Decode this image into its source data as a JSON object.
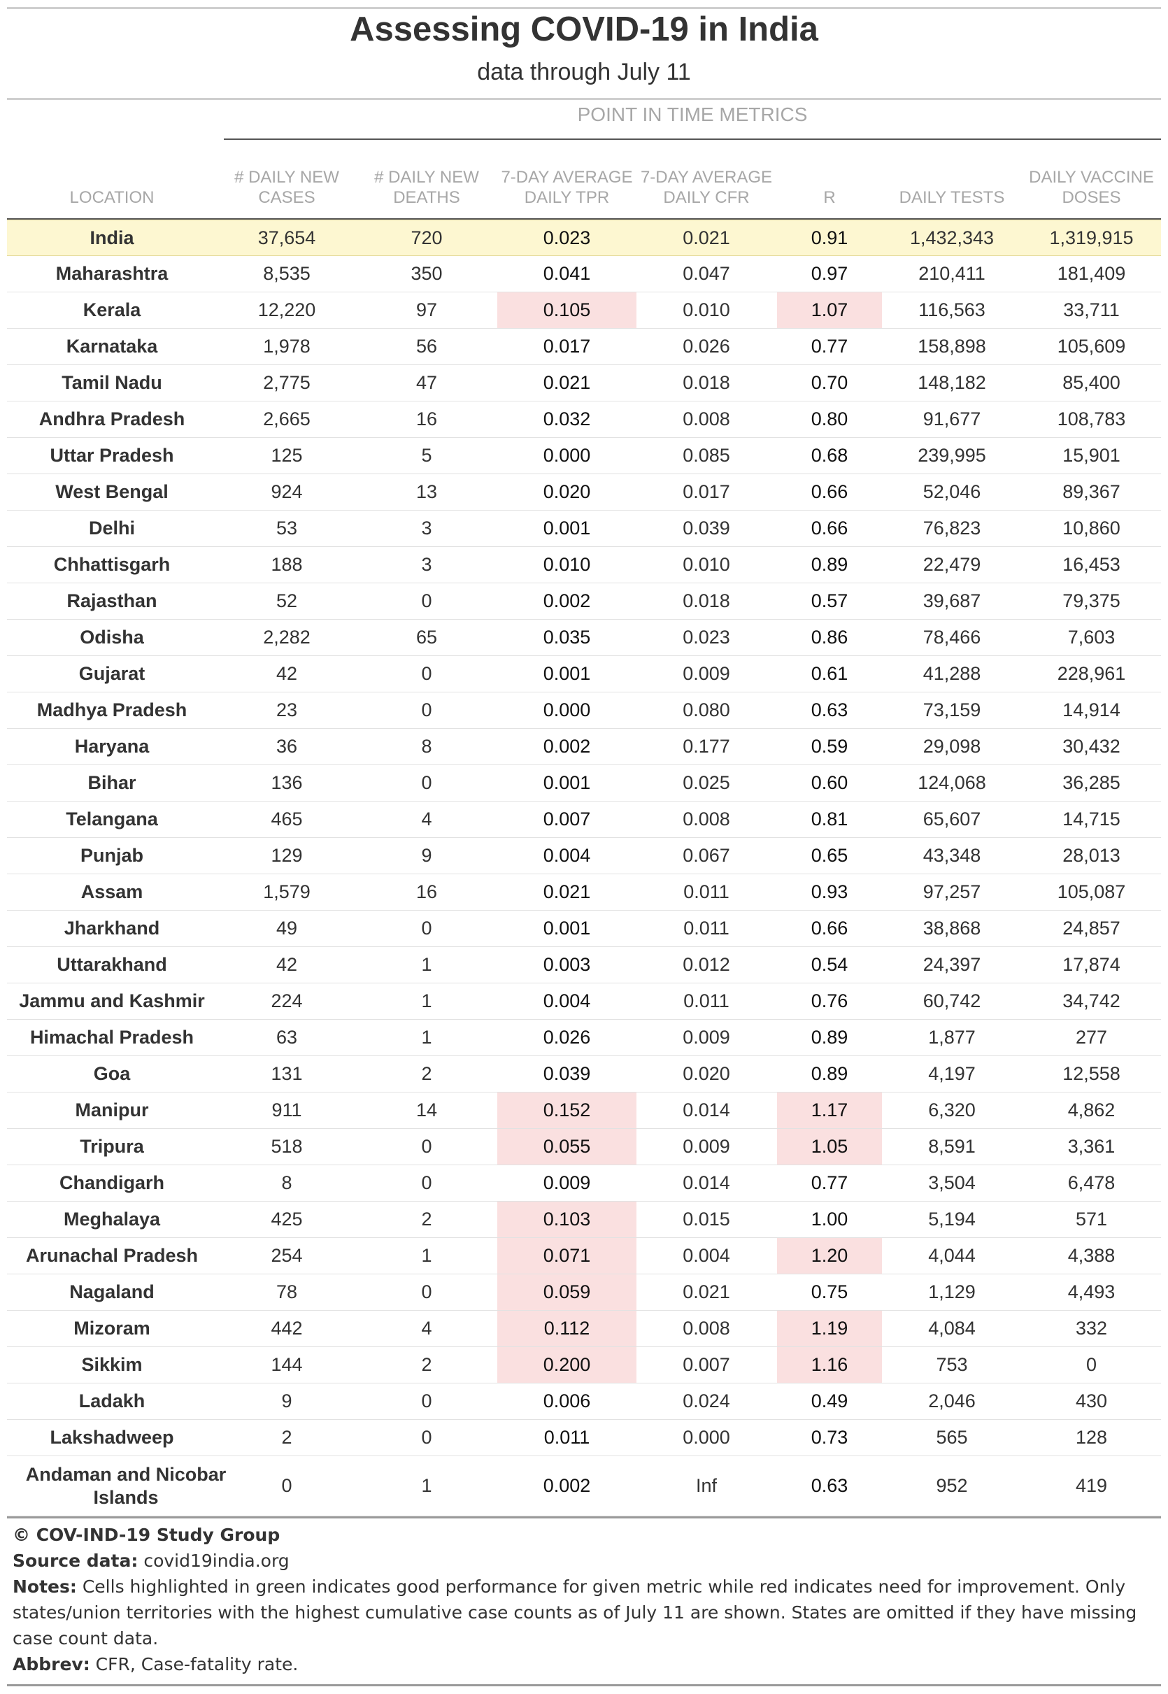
{
  "title": "Assessing COVID-19 in India",
  "subtitle": "data through July 11",
  "group_header": "POINT IN TIME METRICS",
  "columns": [
    {
      "key": "location",
      "label": "LOCATION"
    },
    {
      "key": "cases",
      "label": "# DAILY NEW CASES"
    },
    {
      "key": "deaths",
      "label": "# DAILY NEW DEATHS"
    },
    {
      "key": "tpr",
      "label": "7-DAY AVERAGE DAILY TPR"
    },
    {
      "key": "cfr",
      "label": "7-DAY AVERAGE DAILY CFR"
    },
    {
      "key": "r",
      "label": "R"
    },
    {
      "key": "tests",
      "label": "DAILY TESTS"
    },
    {
      "key": "vaccines",
      "label": "DAILY VACCINE DOSES"
    }
  ],
  "highlight_color": "#fae0e0",
  "summary_row_color": "#fdf7d1",
  "rows": [
    {
      "location": "India",
      "cases": "37,654",
      "deaths": "720",
      "tpr": "0.023",
      "cfr": "0.021",
      "r": "0.91",
      "tests": "1,432,343",
      "vaccines": "1,319,915",
      "highlight": []
    },
    {
      "location": "Maharashtra",
      "cases": "8,535",
      "deaths": "350",
      "tpr": "0.041",
      "cfr": "0.047",
      "r": "0.97",
      "tests": "210,411",
      "vaccines": "181,409",
      "highlight": []
    },
    {
      "location": "Kerala",
      "cases": "12,220",
      "deaths": "97",
      "tpr": "0.105",
      "cfr": "0.010",
      "r": "1.07",
      "tests": "116,563",
      "vaccines": "33,711",
      "highlight": [
        "tpr",
        "r"
      ]
    },
    {
      "location": "Karnataka",
      "cases": "1,978",
      "deaths": "56",
      "tpr": "0.017",
      "cfr": "0.026",
      "r": "0.77",
      "tests": "158,898",
      "vaccines": "105,609",
      "highlight": []
    },
    {
      "location": "Tamil Nadu",
      "cases": "2,775",
      "deaths": "47",
      "tpr": "0.021",
      "cfr": "0.018",
      "r": "0.70",
      "tests": "148,182",
      "vaccines": "85,400",
      "highlight": []
    },
    {
      "location": "Andhra Pradesh",
      "cases": "2,665",
      "deaths": "16",
      "tpr": "0.032",
      "cfr": "0.008",
      "r": "0.80",
      "tests": "91,677",
      "vaccines": "108,783",
      "highlight": []
    },
    {
      "location": "Uttar Pradesh",
      "cases": "125",
      "deaths": "5",
      "tpr": "0.000",
      "cfr": "0.085",
      "r": "0.68",
      "tests": "239,995",
      "vaccines": "15,901",
      "highlight": []
    },
    {
      "location": "West Bengal",
      "cases": "924",
      "deaths": "13",
      "tpr": "0.020",
      "cfr": "0.017",
      "r": "0.66",
      "tests": "52,046",
      "vaccines": "89,367",
      "highlight": []
    },
    {
      "location": "Delhi",
      "cases": "53",
      "deaths": "3",
      "tpr": "0.001",
      "cfr": "0.039",
      "r": "0.66",
      "tests": "76,823",
      "vaccines": "10,860",
      "highlight": []
    },
    {
      "location": "Chhattisgarh",
      "cases": "188",
      "deaths": "3",
      "tpr": "0.010",
      "cfr": "0.010",
      "r": "0.89",
      "tests": "22,479",
      "vaccines": "16,453",
      "highlight": []
    },
    {
      "location": "Rajasthan",
      "cases": "52",
      "deaths": "0",
      "tpr": "0.002",
      "cfr": "0.018",
      "r": "0.57",
      "tests": "39,687",
      "vaccines": "79,375",
      "highlight": []
    },
    {
      "location": "Odisha",
      "cases": "2,282",
      "deaths": "65",
      "tpr": "0.035",
      "cfr": "0.023",
      "r": "0.86",
      "tests": "78,466",
      "vaccines": "7,603",
      "highlight": []
    },
    {
      "location": "Gujarat",
      "cases": "42",
      "deaths": "0",
      "tpr": "0.001",
      "cfr": "0.009",
      "r": "0.61",
      "tests": "41,288",
      "vaccines": "228,961",
      "highlight": []
    },
    {
      "location": "Madhya Pradesh",
      "cases": "23",
      "deaths": "0",
      "tpr": "0.000",
      "cfr": "0.080",
      "r": "0.63",
      "tests": "73,159",
      "vaccines": "14,914",
      "highlight": []
    },
    {
      "location": "Haryana",
      "cases": "36",
      "deaths": "8",
      "tpr": "0.002",
      "cfr": "0.177",
      "r": "0.59",
      "tests": "29,098",
      "vaccines": "30,432",
      "highlight": []
    },
    {
      "location": "Bihar",
      "cases": "136",
      "deaths": "0",
      "tpr": "0.001",
      "cfr": "0.025",
      "r": "0.60",
      "tests": "124,068",
      "vaccines": "36,285",
      "highlight": []
    },
    {
      "location": "Telangana",
      "cases": "465",
      "deaths": "4",
      "tpr": "0.007",
      "cfr": "0.008",
      "r": "0.81",
      "tests": "65,607",
      "vaccines": "14,715",
      "highlight": []
    },
    {
      "location": "Punjab",
      "cases": "129",
      "deaths": "9",
      "tpr": "0.004",
      "cfr": "0.067",
      "r": "0.65",
      "tests": "43,348",
      "vaccines": "28,013",
      "highlight": []
    },
    {
      "location": "Assam",
      "cases": "1,579",
      "deaths": "16",
      "tpr": "0.021",
      "cfr": "0.011",
      "r": "0.93",
      "tests": "97,257",
      "vaccines": "105,087",
      "highlight": []
    },
    {
      "location": "Jharkhand",
      "cases": "49",
      "deaths": "0",
      "tpr": "0.001",
      "cfr": "0.011",
      "r": "0.66",
      "tests": "38,868",
      "vaccines": "24,857",
      "highlight": []
    },
    {
      "location": "Uttarakhand",
      "cases": "42",
      "deaths": "1",
      "tpr": "0.003",
      "cfr": "0.012",
      "r": "0.54",
      "tests": "24,397",
      "vaccines": "17,874",
      "highlight": []
    },
    {
      "location": "Jammu and Kashmir",
      "cases": "224",
      "deaths": "1",
      "tpr": "0.004",
      "cfr": "0.011",
      "r": "0.76",
      "tests": "60,742",
      "vaccines": "34,742",
      "highlight": []
    },
    {
      "location": "Himachal Pradesh",
      "cases": "63",
      "deaths": "1",
      "tpr": "0.026",
      "cfr": "0.009",
      "r": "0.89",
      "tests": "1,877",
      "vaccines": "277",
      "highlight": []
    },
    {
      "location": "Goa",
      "cases": "131",
      "deaths": "2",
      "tpr": "0.039",
      "cfr": "0.020",
      "r": "0.89",
      "tests": "4,197",
      "vaccines": "12,558",
      "highlight": []
    },
    {
      "location": "Manipur",
      "cases": "911",
      "deaths": "14",
      "tpr": "0.152",
      "cfr": "0.014",
      "r": "1.17",
      "tests": "6,320",
      "vaccines": "4,862",
      "highlight": [
        "tpr",
        "r"
      ]
    },
    {
      "location": "Tripura",
      "cases": "518",
      "deaths": "0",
      "tpr": "0.055",
      "cfr": "0.009",
      "r": "1.05",
      "tests": "8,591",
      "vaccines": "3,361",
      "highlight": [
        "tpr",
        "r"
      ]
    },
    {
      "location": "Chandigarh",
      "cases": "8",
      "deaths": "0",
      "tpr": "0.009",
      "cfr": "0.014",
      "r": "0.77",
      "tests": "3,504",
      "vaccines": "6,478",
      "highlight": []
    },
    {
      "location": "Meghalaya",
      "cases": "425",
      "deaths": "2",
      "tpr": "0.103",
      "cfr": "0.015",
      "r": "1.00",
      "tests": "5,194",
      "vaccines": "571",
      "highlight": [
        "tpr"
      ]
    },
    {
      "location": "Arunachal Pradesh",
      "cases": "254",
      "deaths": "1",
      "tpr": "0.071",
      "cfr": "0.004",
      "r": "1.20",
      "tests": "4,044",
      "vaccines": "4,388",
      "highlight": [
        "tpr",
        "r"
      ]
    },
    {
      "location": "Nagaland",
      "cases": "78",
      "deaths": "0",
      "tpr": "0.059",
      "cfr": "0.021",
      "r": "0.75",
      "tests": "1,129",
      "vaccines": "4,493",
      "highlight": [
        "tpr"
      ]
    },
    {
      "location": "Mizoram",
      "cases": "442",
      "deaths": "4",
      "tpr": "0.112",
      "cfr": "0.008",
      "r": "1.19",
      "tests": "4,084",
      "vaccines": "332",
      "highlight": [
        "tpr",
        "r"
      ]
    },
    {
      "location": "Sikkim",
      "cases": "144",
      "deaths": "2",
      "tpr": "0.200",
      "cfr": "0.007",
      "r": "1.16",
      "tests": "753",
      "vaccines": "0",
      "highlight": [
        "tpr",
        "r"
      ]
    },
    {
      "location": "Ladakh",
      "cases": "9",
      "deaths": "0",
      "tpr": "0.006",
      "cfr": "0.024",
      "r": "0.49",
      "tests": "2,046",
      "vaccines": "430",
      "highlight": []
    },
    {
      "location": "Lakshadweep",
      "cases": "2",
      "deaths": "0",
      "tpr": "0.011",
      "cfr": "0.000",
      "r": "0.73",
      "tests": "565",
      "vaccines": "128",
      "highlight": []
    },
    {
      "location": "Andaman and Nicobar Islands",
      "cases": "0",
      "deaths": "1",
      "tpr": "0.002",
      "cfr": "Inf",
      "r": "0.63",
      "tests": "952",
      "vaccines": "419",
      "highlight": []
    }
  ],
  "footer": {
    "copyright": "© COV-IND-19 Study Group",
    "source_label": "Source data:",
    "source_value": "covid19india.org",
    "notes_label": "Notes:",
    "notes_value": "Cells highlighted in green indicates good performance for given metric while red indicates need for improvement. Only states/union territories with the highest cumulative case counts as of July 11 are shown. States are omitted if they have missing case count data.",
    "abbrev_label": "Abbrev:",
    "abbrev_value": "CFR, Case-fatality rate."
  }
}
